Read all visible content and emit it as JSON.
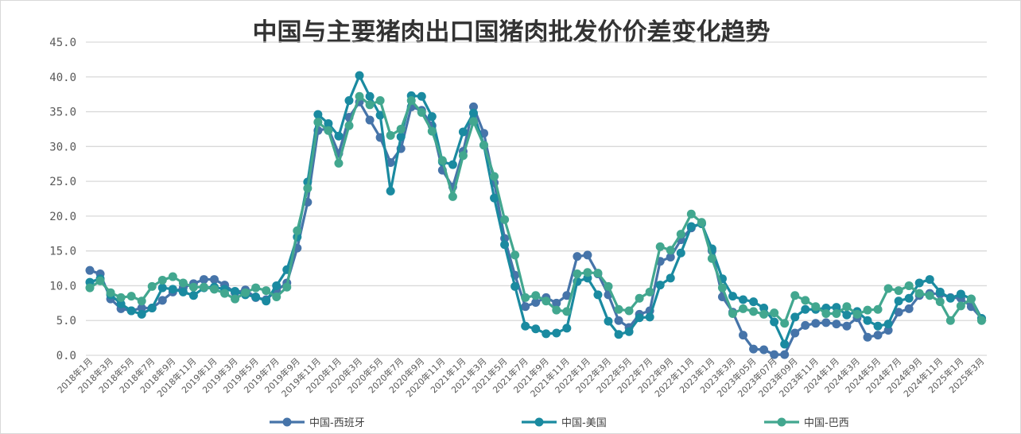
{
  "chart_data": {
    "type": "line",
    "title": "中国与主要猪肉出口国猪肉批发价价差变化趋势",
    "ylim": [
      0,
      45
    ],
    "yticks": [
      "0.0",
      "5.0",
      "10.0",
      "15.0",
      "20.0",
      "25.0",
      "30.0",
      "35.0",
      "40.0",
      "45.0"
    ],
    "grid": true,
    "legend_position": "bottom",
    "x_tick_labels": [
      "2018年1月",
      "2018年3月",
      "2018年5月",
      "2018年7月",
      "2018年9月",
      "2018年11月",
      "2019年1月",
      "2019年3月",
      "2019年5月",
      "2019年7月",
      "2019年9月",
      "2019年11月",
      "2020年1月",
      "2020年3月",
      "2020年5月",
      "2020年7月",
      "2020年9月",
      "2020年11月",
      "2021年1月",
      "2021年3月",
      "2021年5月",
      "2021年7月",
      "2021年9月",
      "2021年11月",
      "2022年1月",
      "2022年3月",
      "2022年5月",
      "2022年7月",
      "2022年9月",
      "2022年11月",
      "2023年1月",
      "2023年3月",
      "2023年05月",
      "2023年07月",
      "2023年09月",
      "2023年11月",
      "2024年1月",
      "2024年3月",
      "2024年5月",
      "2024年7月",
      "2024年9月",
      "2024年11月",
      "2025年1月",
      "2025年3月"
    ],
    "series": [
      {
        "name": "中国-西班牙",
        "color": "#4674a9",
        "values": [
          12.2,
          11.7,
          8.1,
          6.7,
          6.4,
          6.8,
          6.8,
          7.9,
          9.1,
          9.7,
          10.3,
          10.9,
          10.9,
          10.1,
          9.0,
          9.4,
          8.3,
          8.0,
          9.3,
          10.4,
          15.4,
          22.0,
          32.3,
          32.6,
          29.0,
          34.2,
          36.4,
          33.8,
          31.3,
          27.7,
          29.7,
          35.7,
          35.2,
          33.0,
          26.6,
          24.2,
          29.3,
          35.7,
          31.9,
          24.8,
          16.8,
          11.5,
          7.0,
          7.6,
          8.3,
          7.5,
          8.6,
          14.2,
          14.4,
          11.7,
          8.7,
          5.0,
          4.0,
          5.9,
          6.4,
          13.5,
          14.1,
          16.6,
          18.3,
          19.0,
          15.0,
          8.4,
          6.2,
          2.9,
          0.9,
          0.8,
          0.1,
          0.1,
          3.2,
          4.3,
          4.6,
          4.7,
          4.5,
          4.2,
          5.4,
          2.6,
          2.9,
          3.6,
          6.2,
          6.7,
          8.6,
          8.9,
          8.8,
          8.3,
          8.2,
          7.0,
          5.3
        ]
      },
      {
        "name": "中国-美国",
        "color": "#1a8aa0",
        "values": [
          10.5,
          11.0,
          8.7,
          7.4,
          6.4,
          5.9,
          6.8,
          9.7,
          9.5,
          9.1,
          8.6,
          9.7,
          9.8,
          9.5,
          9.2,
          8.7,
          8.4,
          7.8,
          10.0,
          12.3,
          17.0,
          24.9,
          34.6,
          33.3,
          31.5,
          36.6,
          40.2,
          37.2,
          34.5,
          23.6,
          31.4,
          37.3,
          37.2,
          34.3,
          27.8,
          27.4,
          32.1,
          34.8,
          30.2,
          22.6,
          15.9,
          9.9,
          4.2,
          3.8,
          3.1,
          3.2,
          3.9,
          10.6,
          11.1,
          8.7,
          4.9,
          3.0,
          3.4,
          5.4,
          5.5,
          10.1,
          11.1,
          14.7,
          18.5,
          18.9,
          15.3,
          11.0,
          8.5,
          8.0,
          7.7,
          6.8,
          4.8,
          1.6,
          5.5,
          6.6,
          6.6,
          6.8,
          6.9,
          5.8,
          6.3,
          5.0,
          4.2,
          4.5,
          7.8,
          8.2,
          10.4,
          10.9,
          9.1,
          8.2,
          8.8,
          8.1,
          5.3
        ]
      },
      {
        "name": "中国-巴西",
        "color": "#42a78f",
        "values": [
          9.7,
          10.7,
          9.0,
          8.3,
          8.5,
          7.8,
          9.9,
          10.8,
          11.3,
          10.4,
          9.8,
          9.8,
          9.5,
          8.9,
          8.1,
          9.0,
          9.7,
          9.3,
          8.4,
          9.8,
          17.9,
          24.0,
          33.5,
          32.3,
          27.6,
          33.0,
          37.2,
          36.0,
          36.6,
          31.6,
          32.5,
          36.6,
          34.9,
          32.2,
          28.0,
          22.8,
          28.7,
          33.6,
          30.2,
          25.7,
          19.5,
          14.4,
          8.3,
          8.6,
          7.8,
          6.5,
          6.3,
          11.7,
          11.9,
          11.8,
          9.9,
          6.6,
          6.4,
          8.2,
          9.1,
          15.6,
          15.1,
          17.4,
          20.3,
          19.1,
          13.9,
          9.7,
          6.0,
          6.7,
          6.3,
          5.9,
          6.1,
          4.6,
          8.6,
          7.9,
          7.0,
          6.0,
          6.0,
          7.0,
          5.9,
          6.5,
          6.6,
          9.6,
          9.3,
          10.0,
          8.9,
          8.6,
          7.7,
          5.0,
          7.1,
          8.1,
          5.0
        ]
      }
    ]
  }
}
